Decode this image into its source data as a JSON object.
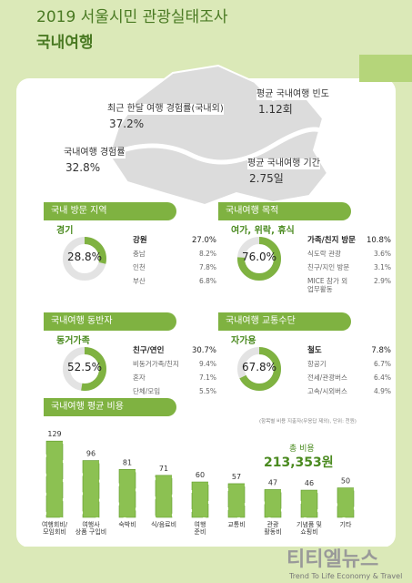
{
  "header": {
    "year_title": "2019 서울시민 관광실태조사",
    "subtitle": "국내여행"
  },
  "map_stats": [
    {
      "label": "최근 한달 여행 경험률(국내외)",
      "value": "37.2%"
    },
    {
      "label": "국내여행 경험률",
      "value": "32.8%"
    },
    {
      "label": "평균 국내여행 빈도",
      "value": "1.12회"
    },
    {
      "label": "평균 국내여행 기간",
      "value": "2.75일"
    }
  ],
  "sections": [
    {
      "title": "국내 방문 지역",
      "main_label": "경기",
      "main_value": {
        "value": 28.8,
        "label": "28.8%"
      },
      "items": [
        {
          "name": "강원",
          "value": "27.0%"
        },
        {
          "name": "충남",
          "value": "8.2%"
        },
        {
          "name": "인천",
          "value": "7.8%"
        },
        {
          "name": "부산",
          "value": "6.8%"
        }
      ]
    },
    {
      "title": "국내여행 목적",
      "main_label": "여가, 위락, 휴식",
      "main_value": {
        "value": 76.0,
        "label": "76.0%"
      },
      "items": [
        {
          "name": "가족/친지 방문",
          "value": "10.8%"
        },
        {
          "name": "식도락 관광",
          "value": "3.6%"
        },
        {
          "name": "친구/지인 방문",
          "value": "3.1%"
        },
        {
          "name": "MICE 참가 외\n업무활동",
          "value": "2.9%"
        }
      ]
    },
    {
      "title": "국내여행 동반자",
      "main_label": "동거가족",
      "main_value": {
        "value": 52.5,
        "label": "52.5%"
      },
      "items": [
        {
          "name": "친구/연인",
          "value": "30.7%"
        },
        {
          "name": "비동거가족/친지",
          "value": "9.4%"
        },
        {
          "name": "혼자",
          "value": "7.1%"
        },
        {
          "name": "단체/모임",
          "value": "5.5%"
        }
      ]
    },
    {
      "title": "국내여행 교통수단",
      "main_label": "자가용",
      "main_value": {
        "value": 67.8,
        "label": "67.8%"
      },
      "items": [
        {
          "name": "철도",
          "value": "7.8%"
        },
        {
          "name": "항공기",
          "value": "6.7%"
        },
        {
          "name": "전세/관광버스",
          "value": "6.4%"
        },
        {
          "name": "고속/시외버스",
          "value": "4.9%"
        }
      ]
    }
  ],
  "cost": {
    "title": "국내여행 평균 비용",
    "note": "(항목별 비용 지출자(무응답 제외), 단위: 천원)",
    "total_label": "총 비용",
    "total": "213,353원",
    "categories": [
      "여행회비/\n모임회비",
      "여행사\n상품 구입비",
      "숙박비",
      "식/음료비",
      "여행\n준비",
      "교통비",
      "관광\n활동비",
      "기념품 및\n쇼핑비",
      "기타"
    ],
    "values": [
      129,
      96,
      81,
      71,
      60,
      57,
      47,
      46,
      50
    ]
  },
  "footer": {
    "brand": "티티엘뉴스",
    "slogan": "Trend To Life Economy & Travel"
  }
}
